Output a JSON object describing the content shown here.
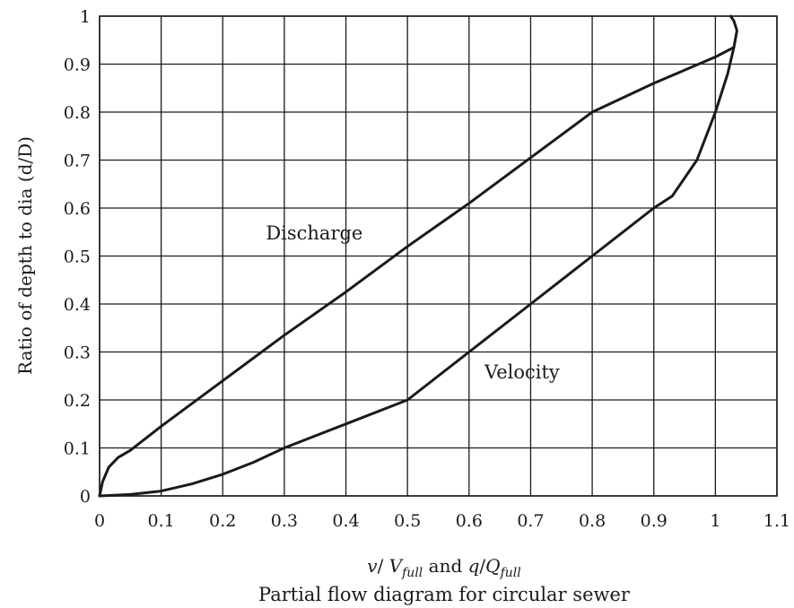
{
  "chart_data": {
    "type": "line",
    "title": "",
    "caption": "Partial flow diagram for circular sewer",
    "xlabel_parts": {
      "v": "v",
      "slash1": "/ ",
      "V": "V",
      "sub1": "full",
      "and": " and ",
      "q": "q",
      "slash2": "/",
      "Q": "Q",
      "sub2": "full"
    },
    "ylabel": "Ratio of depth to dia (d/D)",
    "xlim": [
      0,
      1.1
    ],
    "ylim": [
      0,
      1
    ],
    "grid": true,
    "x_ticks": [
      "0",
      "0.1",
      "0.2",
      "0.3",
      "0.4",
      "0.5",
      "0.6",
      "0.7",
      "0.8",
      "0.9",
      "1",
      "1.1"
    ],
    "y_ticks": [
      "0",
      "0.1",
      "0.2",
      "0.3",
      "0.4",
      "0.5",
      "0.6",
      "0.7",
      "0.8",
      "0.9",
      "1"
    ],
    "series": [
      {
        "name": "Discharge",
        "x": [
          0.0,
          0.005,
          0.015,
          0.03,
          0.05,
          0.1,
          0.2,
          0.3,
          0.4,
          0.5,
          0.6,
          0.7,
          0.8,
          0.9,
          1.0,
          1.03
        ],
        "y": [
          0.0,
          0.03,
          0.06,
          0.08,
          0.095,
          0.145,
          0.24,
          0.335,
          0.425,
          0.52,
          0.61,
          0.705,
          0.8,
          0.86,
          0.915,
          0.935
        ]
      },
      {
        "name": "Velocity",
        "x": [
          0.0,
          0.05,
          0.1,
          0.15,
          0.2,
          0.25,
          0.3,
          0.4,
          0.5,
          0.6,
          0.7,
          0.8,
          0.9,
          0.93,
          0.97,
          1.0,
          1.02,
          1.03,
          1.035,
          1.03,
          1.025
        ],
        "y": [
          0.0,
          0.003,
          0.01,
          0.025,
          0.045,
          0.07,
          0.1,
          0.15,
          0.2,
          0.3,
          0.4,
          0.5,
          0.6,
          0.625,
          0.7,
          0.8,
          0.88,
          0.935,
          0.97,
          0.99,
          1.0
        ]
      }
    ],
    "annotations": [
      {
        "text": "Discharge",
        "x": 0.27,
        "y": 0.535
      },
      {
        "text": "Velocity",
        "x": 0.625,
        "y": 0.245
      }
    ]
  }
}
